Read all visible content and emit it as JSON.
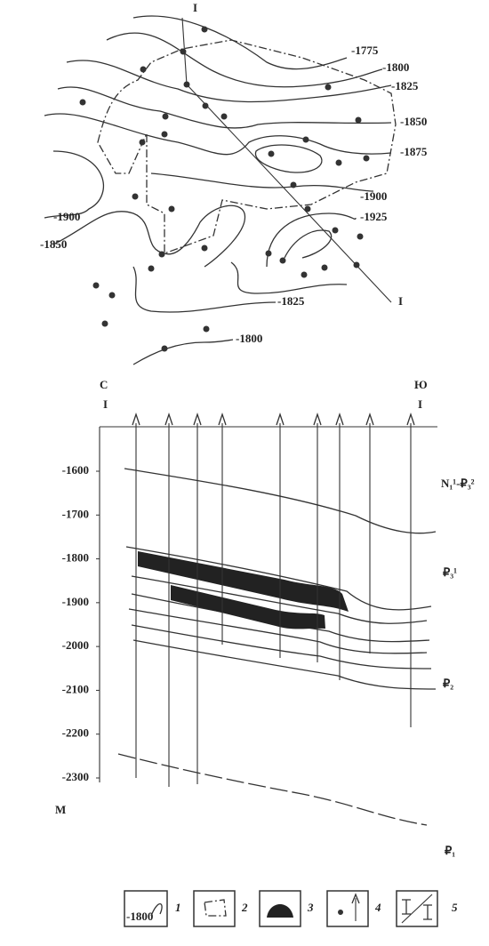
{
  "map": {
    "profile_start": "I",
    "profile_end": "I",
    "contours": [
      "-1775",
      "-1800",
      "-1825",
      "-1850",
      "-1875",
      "-1900",
      "-1925",
      "-1900",
      "-1850",
      "-1825",
      "-1800"
    ]
  },
  "section": {
    "left": {
      "direction": "С",
      "profile": "I"
    },
    "right": {
      "direction": "Ю",
      "profile": "I"
    },
    "depth_ticks": [
      -1600,
      -1700,
      -1800,
      -1900,
      -2000,
      -2100,
      -2200,
      -2300
    ],
    "depth_unit": "М",
    "formations": [
      "N₁¹-₽₃²",
      "₽₃¹",
      "₽₂",
      "₽₁"
    ]
  },
  "legend": {
    "sample": "-1800",
    "items": [
      "1",
      "2",
      "3",
      "4",
      "5"
    ]
  }
}
